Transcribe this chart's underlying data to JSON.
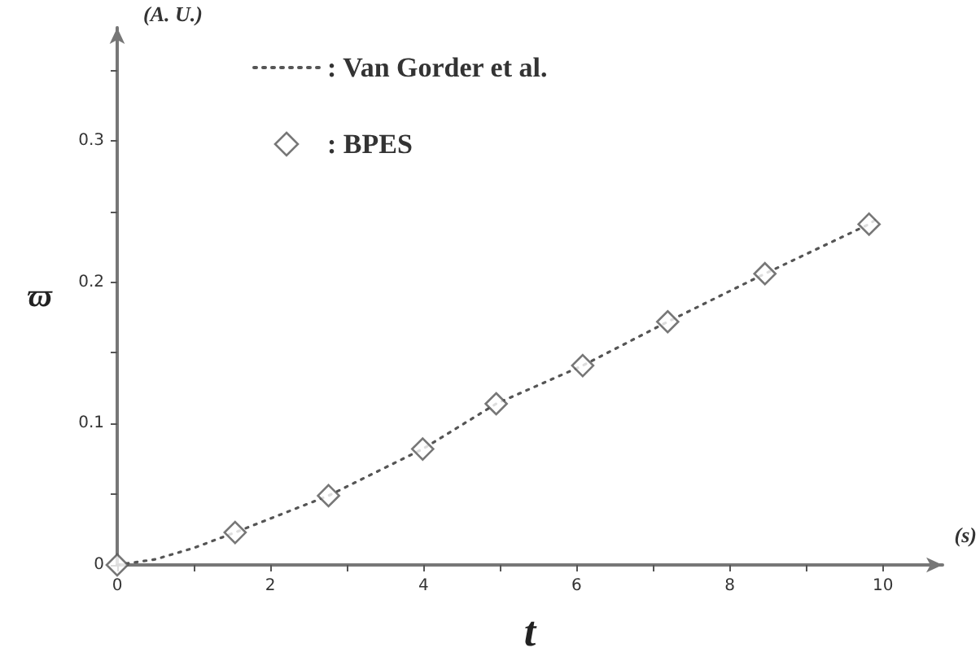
{
  "chart_data": {
    "type": "line",
    "xlabel": "t",
    "ylabel": "ϖ",
    "annotations": [
      "(A. U.)",
      "(s)"
    ],
    "xlim": [
      0,
      10.78
    ],
    "ylim": [
      0,
      0.38
    ],
    "xticks": [
      0,
      {
        "value": 1,
        "label": null
      },
      2,
      {
        "value": 3,
        "label": null
      },
      4,
      {
        "value": 5,
        "label": null
      },
      6,
      {
        "value": 7,
        "label": null
      },
      8,
      {
        "value": 9,
        "label": null
      },
      10
    ],
    "yticks": [
      0,
      {
        "value": 0.05,
        "label": null
      },
      0.1,
      {
        "value": 0.15,
        "label": null
      },
      0.2,
      {
        "value": 0.25,
        "label": null
      },
      0.3,
      {
        "value": 0.35,
        "label": null
      }
    ],
    "grid": false,
    "legend": "top left",
    "series": [
      {
        "name": ": Van Gorder et al.",
        "color": "#555555",
        "marker": "none",
        "line_style": "dotted",
        "x": [
          0,
          0.5,
          1,
          1.54,
          2.76,
          3.99,
          4.95,
          6.08,
          7.19,
          8.46,
          9.82,
          9.9
        ],
        "values": [
          0,
          0.004,
          0.012,
          0.023,
          0.049,
          0.082,
          0.114,
          0.141,
          0.172,
          0.206,
          0.241,
          0.244
        ]
      },
      {
        "name": ": BPES",
        "type": "scatter",
        "color": "#555555",
        "marker": "diamond",
        "x": [
          0,
          1.54,
          2.76,
          3.99,
          4.95,
          6.08,
          7.19,
          8.46,
          9.82
        ],
        "values": [
          0,
          0.023,
          0.049,
          0.082,
          0.114,
          0.141,
          0.172,
          0.206,
          0.241
        ]
      }
    ]
  }
}
